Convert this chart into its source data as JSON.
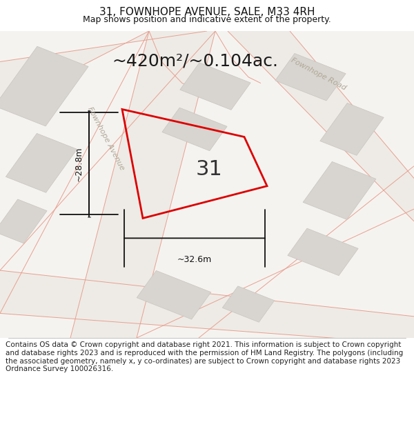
{
  "title": "31, FOWNHOPE AVENUE, SALE, M33 4RH",
  "subtitle": "Map shows position and indicative extent of the property.",
  "area_text": "~420m²/~0.104ac.",
  "label_number": "31",
  "dim_width": "~32.6m",
  "dim_height": "~28.8m",
  "road_label_1": "Fownhope Road",
  "road_label_2": "Fownhope Avenue",
  "footer": "Contains OS data © Crown copyright and database right 2021. This information is subject to Crown copyright and database rights 2023 and is reproduced with the permission of HM Land Registry. The polygons (including the associated geometry, namely x, y co-ordinates) are subject to Crown copyright and database rights 2023 Ordnance Survey 100026316.",
  "bg_color": "#ffffff",
  "map_bg": "#f5f3f0",
  "road_fill": "#e8e4df",
  "plot_line": "#dd0000",
  "building_fill": "#d8d4cf",
  "building_edge": "#c8c4bf",
  "street_line": "#e8a090",
  "street_line2": "#d49080",
  "dim_line_color": "#111111",
  "title_color": "#111111",
  "footer_color": "#222222",
  "title_fontsize": 11,
  "subtitle_fontsize": 9,
  "area_fontsize": 18,
  "num_fontsize": 22,
  "road_label_fontsize": 8,
  "dim_fontsize": 9,
  "footer_fontsize": 7.5
}
